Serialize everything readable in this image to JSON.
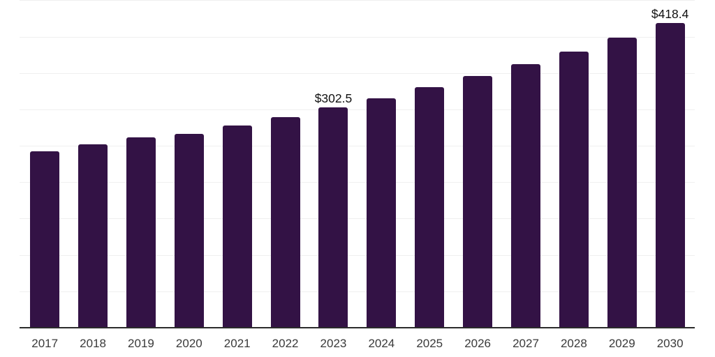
{
  "chart_data": {
    "type": "bar",
    "title": "",
    "xlabel": "",
    "ylabel": "",
    "categories": [
      "2017",
      "2018",
      "2019",
      "2020",
      "2021",
      "2022",
      "2023",
      "2024",
      "2025",
      "2026",
      "2027",
      "2028",
      "2029",
      "2030"
    ],
    "values": [
      242.6,
      252.0,
      261.5,
      266.6,
      277.9,
      289.3,
      302.5,
      315.2,
      330.4,
      345.8,
      362.0,
      379.3,
      398.4,
      418.4
    ],
    "labeled_points": [
      {
        "category": "2023",
        "label": "$302.5"
      },
      {
        "category": "2030",
        "label": "$418.4"
      }
    ],
    "ylim": [
      0,
      450
    ],
    "grid_step": 50,
    "grid": true,
    "legend_position": "none",
    "y_axis_labels_visible": false,
    "colors": {
      "bar": "#331245",
      "axis_line": "#2b2b2b",
      "gridline": "#efefef",
      "tick_label": "#3a3a3a",
      "data_label": "#111111",
      "background": "#ffffff"
    }
  }
}
